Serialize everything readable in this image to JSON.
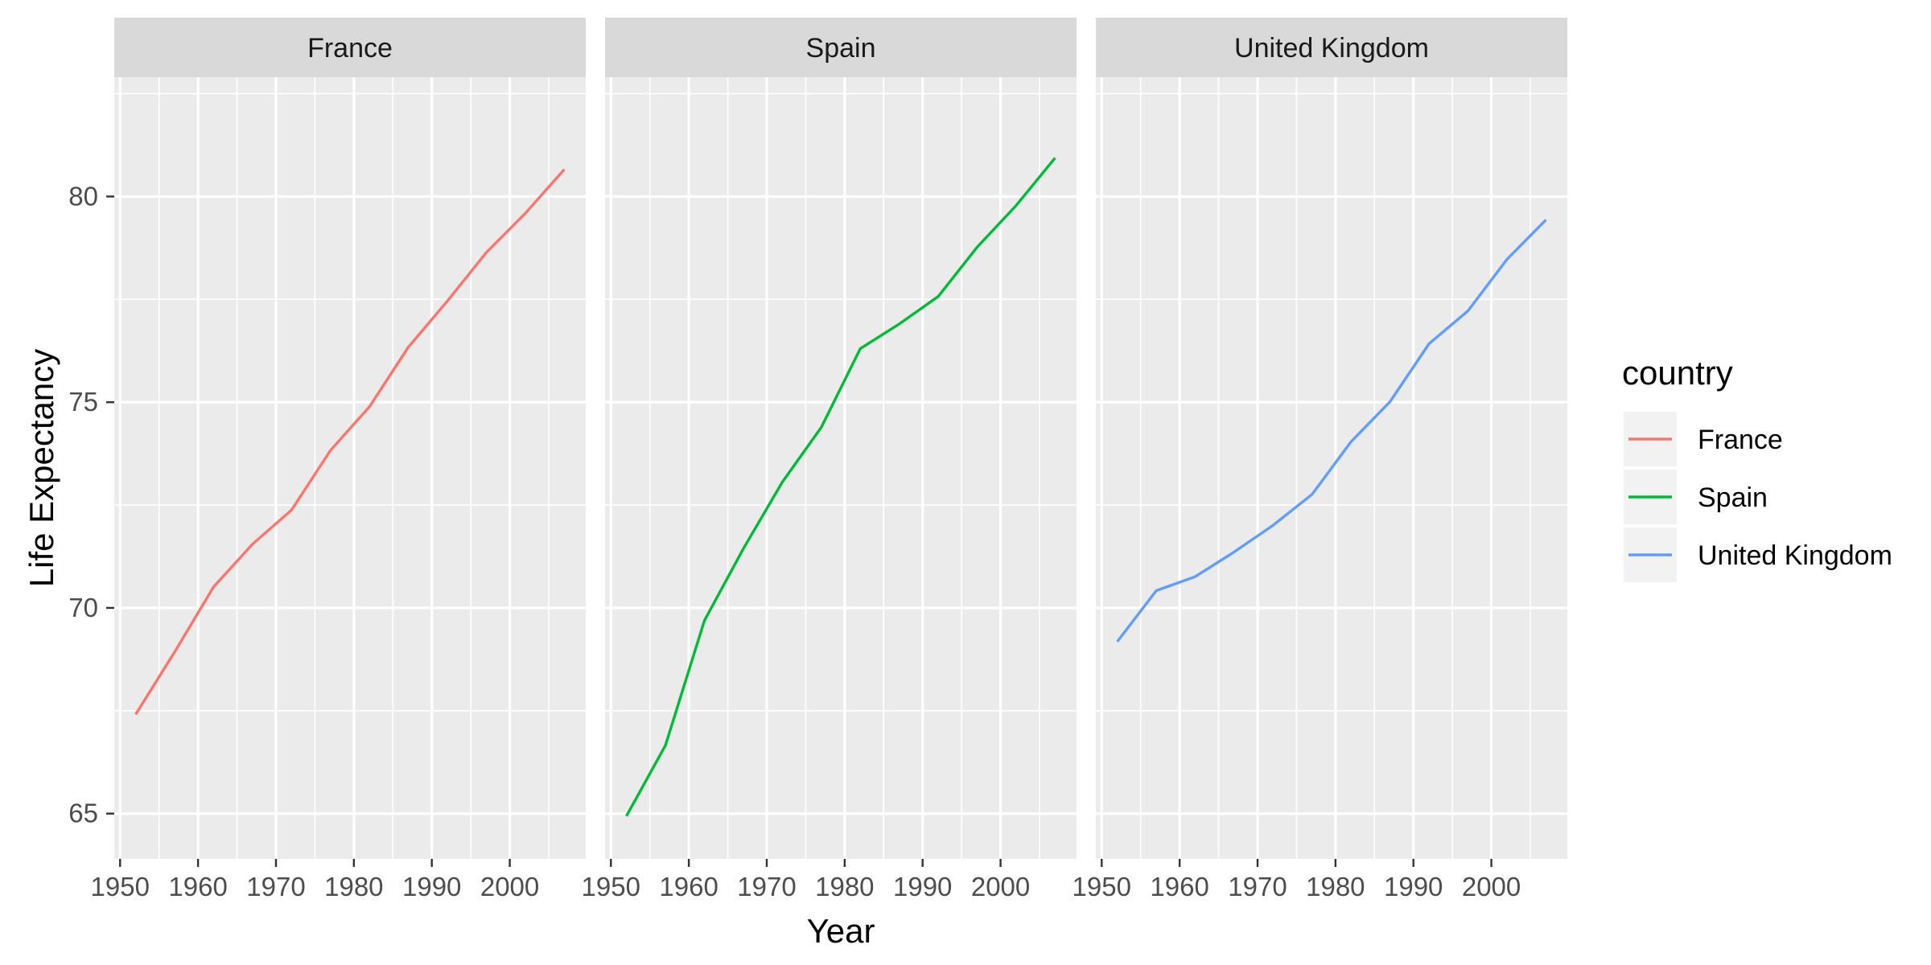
{
  "chart_data": {
    "type": "line",
    "facet_by": "country",
    "xlabel": "Year",
    "ylabel": "Life Expectancy",
    "xlim": [
      1949.25,
      2009.75
    ],
    "ylim": [
      63.9,
      82.9
    ],
    "x_ticks": [
      1950,
      1960,
      1970,
      1980,
      1990,
      2000
    ],
    "y_ticks": [
      65,
      70,
      75,
      80
    ],
    "x_tick_labels": [
      "1950",
      "1960",
      "1970",
      "1980",
      "1990",
      "2000"
    ],
    "y_tick_labels": [
      "65",
      "70",
      "75",
      "80"
    ],
    "grid": true,
    "legend": {
      "title": "country",
      "position": "right",
      "entries": [
        "France",
        "Spain",
        "United Kingdom"
      ]
    },
    "x": [
      1952,
      1957,
      1962,
      1967,
      1972,
      1977,
      1982,
      1987,
      1992,
      1997,
      2002,
      2007
    ],
    "series": [
      {
        "name": "France",
        "color": "#F8766D",
        "values": [
          67.41,
          68.93,
          70.51,
          71.55,
          72.38,
          73.83,
          74.89,
          76.34,
          77.46,
          78.64,
          79.59,
          80.66
        ]
      },
      {
        "name": "Spain",
        "color": "#00BA38",
        "values": [
          64.94,
          66.66,
          69.69,
          71.44,
          73.06,
          74.39,
          76.3,
          76.9,
          77.57,
          78.77,
          79.78,
          80.94
        ]
      },
      {
        "name": "United Kingdom",
        "color": "#619CFF",
        "values": [
          69.18,
          70.42,
          70.76,
          71.36,
          72.01,
          72.76,
          74.04,
          75.01,
          76.42,
          77.22,
          78.47,
          79.43
        ]
      }
    ]
  }
}
